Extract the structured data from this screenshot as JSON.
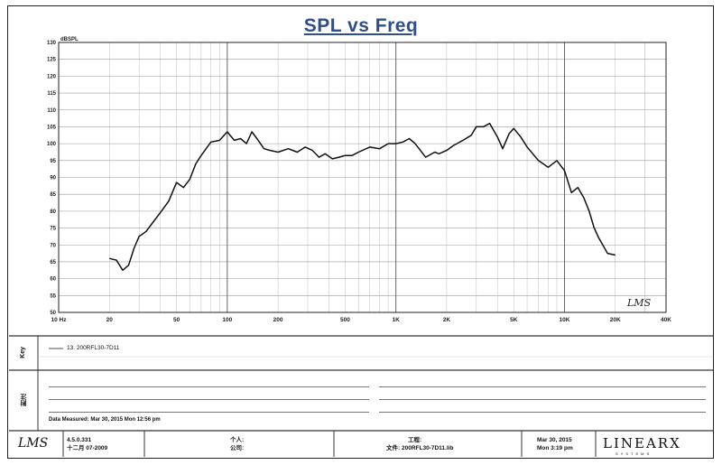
{
  "chart_data": {
    "type": "line",
    "title": "SPL vs Freq",
    "ylabel": "dBSPL",
    "xscale": "log",
    "xlim": [
      10,
      40000
    ],
    "ylim": [
      50,
      130
    ],
    "y_ticks": [
      "50",
      "55",
      "60",
      "65",
      "70",
      "75",
      "80",
      "85",
      "90",
      "95",
      "100",
      "105",
      "110",
      "115",
      "120",
      "125",
      "130"
    ],
    "x_ticks": [
      {
        "value": 10,
        "label": "10 Hz"
      },
      {
        "value": 20,
        "label": "20"
      },
      {
        "value": 50,
        "label": "50"
      },
      {
        "value": 100,
        "label": "100"
      },
      {
        "value": 200,
        "label": "200"
      },
      {
        "value": 500,
        "label": "500"
      },
      {
        "value": 1000,
        "label": "1K"
      },
      {
        "value": 2000,
        "label": "2K"
      },
      {
        "value": 5000,
        "label": "5K"
      },
      {
        "value": 10000,
        "label": "10K"
      },
      {
        "value": 20000,
        "label": "20K"
      },
      {
        "value": 40000,
        "label": "40K"
      }
    ],
    "grid": true,
    "series": [
      {
        "name": "13. 200RFL30-7D11",
        "color": "#111111",
        "x": [
          20,
          22,
          24,
          26,
          28,
          30,
          33,
          36,
          40,
          45,
          50,
          55,
          60,
          65,
          70,
          80,
          90,
          100,
          110,
          120,
          130,
          140,
          150,
          165,
          180,
          200,
          230,
          260,
          290,
          320,
          350,
          380,
          420,
          460,
          500,
          550,
          600,
          700,
          800,
          900,
          1000,
          1100,
          1200,
          1300,
          1500,
          1700,
          1800,
          2000,
          2200,
          2500,
          2800,
          3000,
          3300,
          3600,
          4000,
          4300,
          4700,
          5000,
          5500,
          6000,
          7000,
          8000,
          9000,
          10000,
          11000,
          12000,
          13000,
          14000,
          15000,
          16000,
          18000,
          20000
        ],
        "y": [
          66,
          65.5,
          62.5,
          64,
          69,
          72.5,
          74,
          76.5,
          79.5,
          83,
          88.5,
          87,
          89.5,
          94,
          96.5,
          100.5,
          101,
          103.5,
          101,
          101.5,
          100,
          103.5,
          101.5,
          98.5,
          98,
          97.5,
          98.5,
          97.5,
          99,
          98,
          96,
          97,
          95.5,
          96,
          96.5,
          96.5,
          97.5,
          99,
          98.5,
          100,
          100,
          100.5,
          101.5,
          100,
          96,
          97.5,
          97,
          98,
          99.5,
          101,
          102.5,
          105,
          105,
          106,
          102,
          98.5,
          103,
          104.5,
          102,
          99,
          95,
          93,
          95,
          92,
          85.5,
          87,
          84,
          80,
          75,
          72,
          67.5,
          67
        ]
      }
    ]
  },
  "legend": {
    "side_label": "Key",
    "entries": [
      "13. 200RFL30-7D11"
    ]
  },
  "notes": {
    "side_label": "附注",
    "date_measured": "Data Measured: Mar 30, 2015  Mon 12:56 pm"
  },
  "watermark": "LMS",
  "footer": {
    "logo": "LMS",
    "version": "4.5.0.331",
    "version_date": "十二月 07-2009",
    "field_person": "个人:",
    "field_company": "公司:",
    "field_project": "工程:",
    "field_file": "文件: 200RFL30-7D11.lib",
    "date": "Mar 30, 2015",
    "time": "Mon  3:19 pm",
    "brand": "LINEARX",
    "brand_sub": "SYSTEMS"
  }
}
